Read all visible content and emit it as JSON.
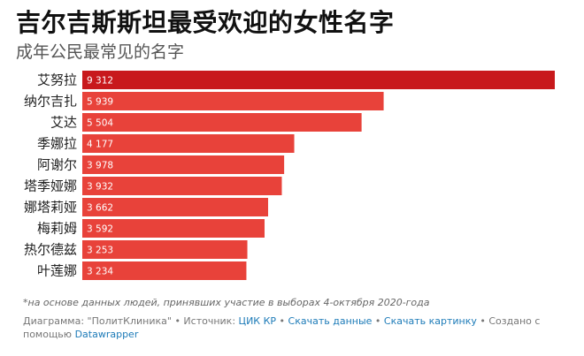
{
  "title": "吉尔吉斯斯坦最受欢迎的女性名字",
  "subtitle": "成年公民最常见的名字",
  "chart_data": {
    "type": "bar",
    "orientation": "horizontal",
    "categories": [
      "艾努拉",
      "纳尔吉扎",
      "艾达",
      "季娜拉",
      "阿谢尔",
      "塔季娅娜",
      "娜塔莉娅",
      "梅莉姆",
      "热尔德兹",
      "叶莲娜"
    ],
    "values": [
      9312,
      5939,
      5504,
      4177,
      3978,
      3932,
      3662,
      3592,
      3253,
      3234
    ],
    "value_labels": [
      "9 312",
      "5 939",
      "5 504",
      "4 177",
      "3 978",
      "3 932",
      "3 662",
      "3 592",
      "3 253",
      "3 234"
    ],
    "xlim": [
      0,
      9312
    ],
    "grid": false,
    "colors": {
      "top": "#c8191c",
      "rest": "#e8423a"
    }
  },
  "note": "*на основе данных людей, принявших участие в выборах 4-октября 2020-года",
  "footer": {
    "prefix": "Диаграмма: \"ПолитКлиника\" • Источник: ",
    "source": "ЦИК КР",
    "sep1": " • ",
    "download_data": "Скачать данные",
    "sep2": " • ",
    "download_image": "Скачать картинку",
    "suffix": " • Создано с помощью ",
    "tool": "Datawrapper"
  }
}
